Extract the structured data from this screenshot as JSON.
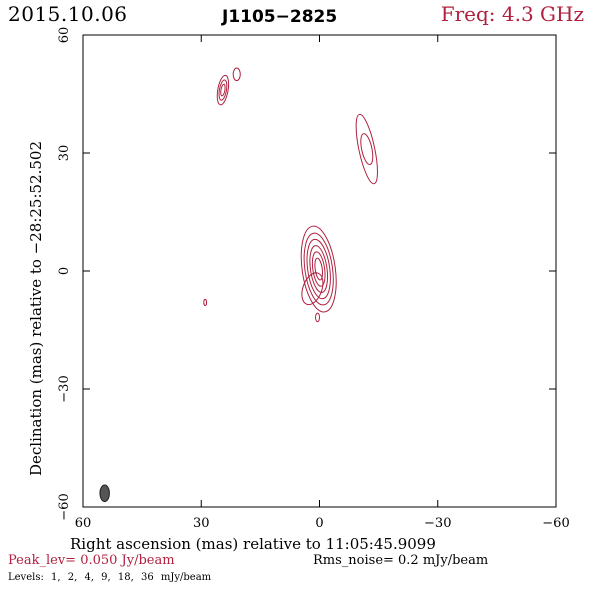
{
  "header": {
    "date": "2015.10.06",
    "source": "J1105−2825",
    "freq": "Freq: 4.3 GHz"
  },
  "footer": {
    "peak": "Peak_lev=  0.050 Jy/beam",
    "rms": "Rms_noise=  0.2 mJy/beam",
    "levels": "Levels:  1,  2,  4,  9,  18,  36 mJy/beam"
  },
  "colors": {
    "contour": "#b0203f",
    "beam": "#555555",
    "axis": "#000000",
    "accent_text": "#b0203f"
  },
  "chart_data": {
    "type": "contour",
    "xlabel": "Right ascension (mas) relative to 11:05:45.9099",
    "ylabel": "Declination (mas) relative to −28:25:52.502",
    "xlim": [
      60,
      -60
    ],
    "ylim": [
      -60,
      60
    ],
    "xticks": [
      60,
      30,
      0,
      -30,
      -60
    ],
    "yticks": [
      -60,
      -30,
      0,
      30,
      60
    ],
    "xtick_labels": [
      "60",
      "30",
      "0",
      "−30",
      "−60"
    ],
    "ytick_labels": [
      "−60",
      "−30",
      "0",
      "30",
      "60"
    ],
    "levels_mJy_per_beam": [
      1,
      2,
      4,
      9,
      18,
      36
    ],
    "components": [
      {
        "name": "core",
        "ra": 0.2,
        "dec": 0.5,
        "contours": [
          {
            "level": 1,
            "a": 4.2,
            "b": 11.0,
            "angle": -8
          },
          {
            "level": 2,
            "a": 3.5,
            "b": 9.2,
            "angle": -8
          },
          {
            "level": 4,
            "a": 2.8,
            "b": 7.6,
            "angle": -8
          },
          {
            "level": 9,
            "a": 2.1,
            "b": 6.0,
            "angle": -8
          },
          {
            "level": 18,
            "a": 1.5,
            "b": 4.4,
            "angle": -8
          },
          {
            "level": 36,
            "a": 0.9,
            "b": 2.8,
            "angle": -8
          }
        ]
      },
      {
        "name": "core-extension",
        "ra": 1.8,
        "dec": -4.5,
        "contours": [
          {
            "level": 1,
            "a": 2.4,
            "b": 4.2,
            "angle": 20
          }
        ]
      },
      {
        "name": "southern-blob",
        "ra": 0.5,
        "dec": -11.8,
        "contours": [
          {
            "level": 1,
            "a": 0.5,
            "b": 1.1,
            "angle": 0
          }
        ]
      },
      {
        "name": "western-feature",
        "ra": -12.0,
        "dec": 31.0,
        "contours": [
          {
            "level": 1,
            "a": 2.0,
            "b": 9.0,
            "angle": -12
          },
          {
            "level": 2,
            "a": 1.3,
            "b": 4.0,
            "angle": -12
          }
        ]
      },
      {
        "name": "northern-feature",
        "ra": 24.5,
        "dec": 46.0,
        "contours": [
          {
            "level": 1,
            "a": 1.3,
            "b": 3.8,
            "angle": 10
          },
          {
            "level": 2,
            "a": 0.9,
            "b": 2.6,
            "angle": 10
          },
          {
            "level": 4,
            "a": 0.5,
            "b": 1.5,
            "angle": 10
          }
        ]
      },
      {
        "name": "northern-knot",
        "ra": 21.0,
        "dec": 50.0,
        "contours": [
          {
            "level": 1,
            "a": 0.9,
            "b": 1.6,
            "angle": 0
          }
        ]
      },
      {
        "name": "east-dot",
        "ra": 29.0,
        "dec": -8.0,
        "contours": [
          {
            "level": 1,
            "a": 0.35,
            "b": 0.8,
            "angle": 0
          }
        ]
      }
    ],
    "beam": {
      "ra": 54.5,
      "dec": -56.5,
      "a": 1.2,
      "b": 2.1,
      "angle": 0
    }
  }
}
